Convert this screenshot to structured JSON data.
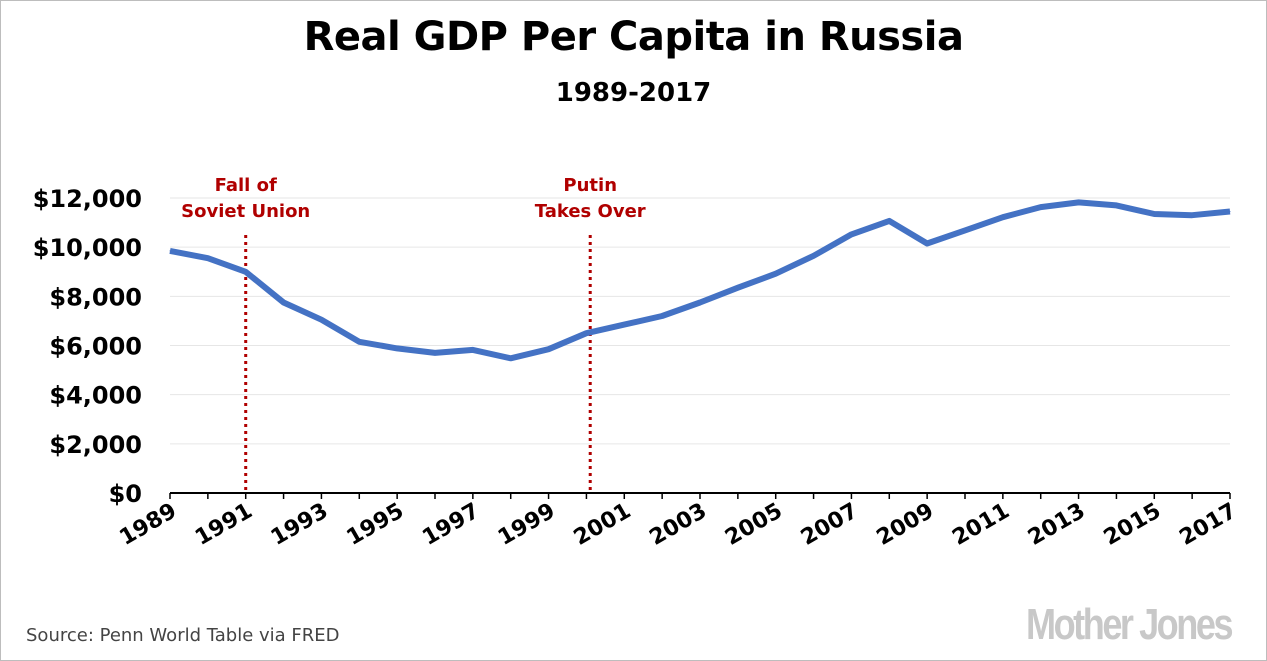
{
  "title": "Real GDP Per Capita in Russia",
  "subtitle": "1989-2017",
  "source": "Source: Penn World Table via FRED",
  "logo": "Mother Jones",
  "colors": {
    "line": "#4472c4",
    "annotation": "#b00000",
    "grid": "#e6e6e6"
  },
  "chart_data": {
    "type": "line",
    "title": "Real GDP Per Capita in Russia",
    "subtitle": "1989-2017",
    "xlabel": "",
    "ylabel": "",
    "x": [
      1989,
      1990,
      1991,
      1992,
      1993,
      1994,
      1995,
      1996,
      1997,
      1998,
      1999,
      2000,
      2001,
      2002,
      2003,
      2004,
      2005,
      2006,
      2007,
      2008,
      2009,
      2010,
      2011,
      2012,
      2013,
      2014,
      2015,
      2016,
      2017
    ],
    "series": [
      {
        "values": [
          9850,
          9550,
          9000,
          7750,
          7050,
          6150,
          5880,
          5700,
          5820,
          5480,
          5850,
          6500,
          6850,
          7200,
          7750,
          8350,
          8920,
          9650,
          10520,
          11070,
          10150,
          10680,
          11220,
          11630,
          11820,
          11700,
          11350,
          11300,
          11450
        ]
      }
    ],
    "xlim": [
      1989,
      2017
    ],
    "ylim": [
      0,
      12000
    ],
    "yticks": [
      0,
      2000,
      4000,
      6000,
      8000,
      10000,
      12000
    ],
    "ytick_labels": [
      "$0",
      "$2,000",
      "$4,000",
      "$6,000",
      "$8,000",
      "$10,000",
      "$12,000"
    ],
    "xticks": [
      1989,
      1991,
      1993,
      1995,
      1997,
      1999,
      2001,
      2003,
      2005,
      2007,
      2009,
      2011,
      2013,
      2015,
      2017
    ],
    "xtick_labels": [
      "1989",
      "1991",
      "1993",
      "1995",
      "1997",
      "1999",
      "2001",
      "2003",
      "2005",
      "2007",
      "2009",
      "2011",
      "2013",
      "2015",
      "2017"
    ],
    "grid": true,
    "annotations": [
      {
        "x": 1991,
        "lines": [
          "Fall of",
          "Soviet Union"
        ]
      },
      {
        "x": 2000.1,
        "lines": [
          "Putin",
          "Takes Over"
        ]
      }
    ]
  }
}
